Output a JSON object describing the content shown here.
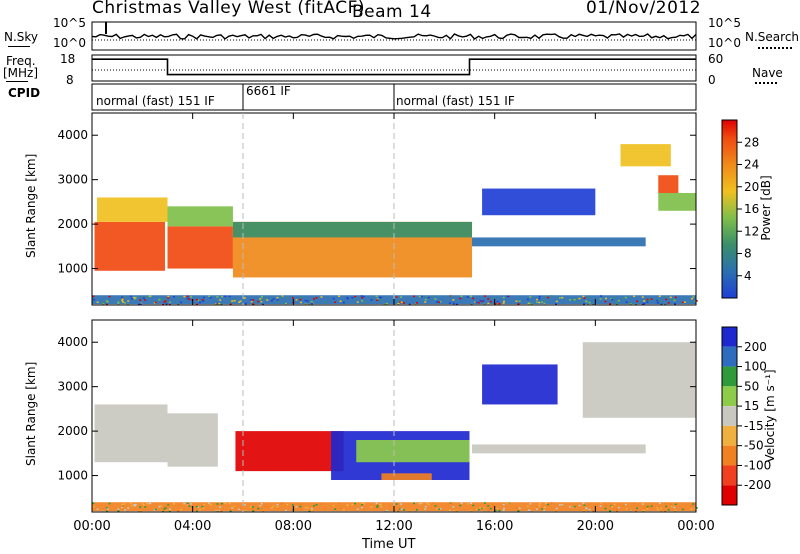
{
  "header": {
    "title": "Christmas Valley West (fitACF)",
    "beam": "Beam 14",
    "date": "01/Nov/2012"
  },
  "panel_labels": {
    "nsky": "N.Sky",
    "nsky_ticks": [
      "10^5",
      "10^0"
    ],
    "nsearch": "N.Search",
    "nsearch_ticks": [
      "10^5",
      "10^0"
    ],
    "freq": "Freq.",
    "freq_unit": "[MHz]",
    "freq_ticks": [
      "18",
      "8"
    ],
    "nave": "Nave",
    "nave_ticks": [
      "60",
      "0"
    ],
    "cpid": "CPID"
  },
  "cpid_modes": [
    {
      "label": "normal (fast) 151 IF",
      "start": 0,
      "end": 6
    },
    {
      "label": "6661 IF",
      "start": 6,
      "end": 12
    },
    {
      "label": "normal (fast) 151 IF",
      "start": 12,
      "end": 24
    }
  ],
  "axes": {
    "xlabel": "Time UT",
    "xticks": [
      "00:00",
      "04:00",
      "08:00",
      "12:00",
      "16:00",
      "20:00",
      "00:00"
    ],
    "ylabel": "Slant Range [km]",
    "yticks": [
      "1000",
      "2000",
      "3000",
      "4000"
    ]
  },
  "power_scale": {
    "label": "Power [dB]",
    "ticks": [
      "4",
      "8",
      "12",
      "16",
      "20",
      "24",
      "28"
    ],
    "colors": [
      "#1f3fd6",
      "#2a6fb0",
      "#3a8f6a",
      "#7fbf4a",
      "#f0c020",
      "#f08a1a",
      "#f04a10",
      "#e00000"
    ]
  },
  "velocity_scale": {
    "label": "Velocity [m s⁻¹]",
    "ticks": [
      "200",
      "100",
      "50",
      "15",
      "-15",
      "-50",
      "-100",
      "-200"
    ],
    "colors": [
      "#1e28d0",
      "#2e6cc0",
      "#2e9a3a",
      "#8ccc4a",
      "#c8c8c0",
      "#f0b040",
      "#f08020",
      "#f04020",
      "#e00000"
    ]
  },
  "chart_data": [
    {
      "type": "line",
      "name": "frequency",
      "x_unit": "hours UT",
      "segments": [
        {
          "x": [
            0,
            3
          ],
          "y": 17
        },
        {
          "x": [
            3,
            15
          ],
          "y": 10
        },
        {
          "x": [
            15,
            24
          ],
          "y": 17
        }
      ],
      "ylim": [
        8,
        18
      ]
    },
    {
      "type": "heatmap",
      "name": "power",
      "xlim": [
        0,
        24
      ],
      "ylim": [
        180,
        4500
      ],
      "regions": [
        {
          "x0": 0.1,
          "x1": 2.9,
          "r0": 950,
          "r1": 2050,
          "v": 27
        },
        {
          "x0": 0.2,
          "x1": 3.0,
          "r0": 2050,
          "r1": 2600,
          "v": 18
        },
        {
          "x0": 3.0,
          "x1": 5.6,
          "r0": 1000,
          "r1": 1950,
          "v": 26
        },
        {
          "x0": 3.0,
          "x1": 5.6,
          "r0": 1950,
          "r1": 2400,
          "v": 17
        },
        {
          "x0": 5.6,
          "x1": 15.1,
          "r0": 800,
          "r1": 2050,
          "v": 24
        },
        {
          "x0": 5.6,
          "x1": 15.1,
          "r0": 1700,
          "r1": 2050,
          "v": 12
        },
        {
          "x0": 15.1,
          "x1": 22.0,
          "r0": 1500,
          "r1": 1700,
          "v": 6
        },
        {
          "x0": 15.5,
          "x1": 20.0,
          "r0": 2200,
          "r1": 2800,
          "v": 5
        },
        {
          "x0": 21.0,
          "x1": 23.0,
          "r0": 3300,
          "r1": 3800,
          "v": 20
        },
        {
          "x0": 22.5,
          "x1": 24.0,
          "r0": 2300,
          "r1": 2700,
          "v": 14
        },
        {
          "x0": 22.5,
          "x1": 23.3,
          "r0": 2700,
          "r1": 3100,
          "v": 27
        },
        {
          "x0": 0,
          "x1": 24,
          "r0": 200,
          "r1": 400,
          "v": 7
        }
      ]
    },
    {
      "type": "heatmap",
      "name": "velocity",
      "xlim": [
        0,
        24
      ],
      "ylim": [
        180,
        4500
      ],
      "regions": [
        {
          "x0": 0.1,
          "x1": 3.0,
          "r0": 1300,
          "r1": 2600,
          "v": 0
        },
        {
          "x0": 3.0,
          "x1": 5.0,
          "r0": 1200,
          "r1": 2400,
          "v": 0
        },
        {
          "x0": 5.7,
          "x1": 10.0,
          "r0": 1100,
          "r1": 2000,
          "v": -220
        },
        {
          "x0": 9.5,
          "x1": 15.0,
          "r0": 900,
          "r1": 2000,
          "v": 220
        },
        {
          "x0": 10.5,
          "x1": 15.0,
          "r0": 1300,
          "r1": 1800,
          "v": 35
        },
        {
          "x0": 11.5,
          "x1": 13.5,
          "r0": 900,
          "r1": 1050,
          "v": -70
        },
        {
          "x0": 15.1,
          "x1": 22.0,
          "r0": 1500,
          "r1": 1700,
          "v": 0
        },
        {
          "x0": 15.5,
          "x1": 18.5,
          "r0": 2600,
          "r1": 3500,
          "v": 200
        },
        {
          "x0": 19.5,
          "x1": 24.0,
          "r0": 2300,
          "r1": 4000,
          "v": 0
        },
        {
          "x0": 0,
          "x1": 24,
          "r0": 200,
          "r1": 400,
          "v": -60
        }
      ]
    }
  ]
}
